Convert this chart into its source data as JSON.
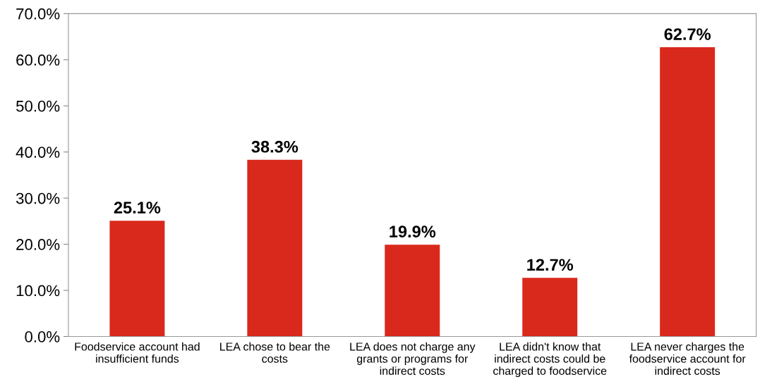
{
  "chart_data": {
    "type": "bar",
    "categories": [
      "Foodservice account had\ninsufficient funds",
      "LEA chose to bear the\ncosts",
      "LEA does not charge any\ngrants or programs for\nindirect costs",
      "LEA didn't know that\nindirect costs could be\ncharged to foodservice",
      "LEA never charges the\nfoodservice account for\nindirect costs"
    ],
    "values": [
      25.1,
      38.3,
      19.9,
      12.7,
      62.7
    ],
    "value_labels": [
      "25.1%",
      "38.3%",
      "19.9%",
      "12.7%",
      "62.7%"
    ],
    "color": "#d9291c",
    "ylim": [
      0,
      70
    ],
    "yticks": [
      {
        "value": 0,
        "label": "0.0%"
      },
      {
        "value": 10,
        "label": "10.0%"
      },
      {
        "value": 20,
        "label": "20.0%"
      },
      {
        "value": 30,
        "label": "30.0%"
      },
      {
        "value": 40,
        "label": "40.0%"
      },
      {
        "value": 50,
        "label": "50.0%"
      },
      {
        "value": 60,
        "label": "60.0%"
      },
      {
        "value": 70,
        "label": "70.0%"
      }
    ],
    "grid": false,
    "legend": false
  }
}
